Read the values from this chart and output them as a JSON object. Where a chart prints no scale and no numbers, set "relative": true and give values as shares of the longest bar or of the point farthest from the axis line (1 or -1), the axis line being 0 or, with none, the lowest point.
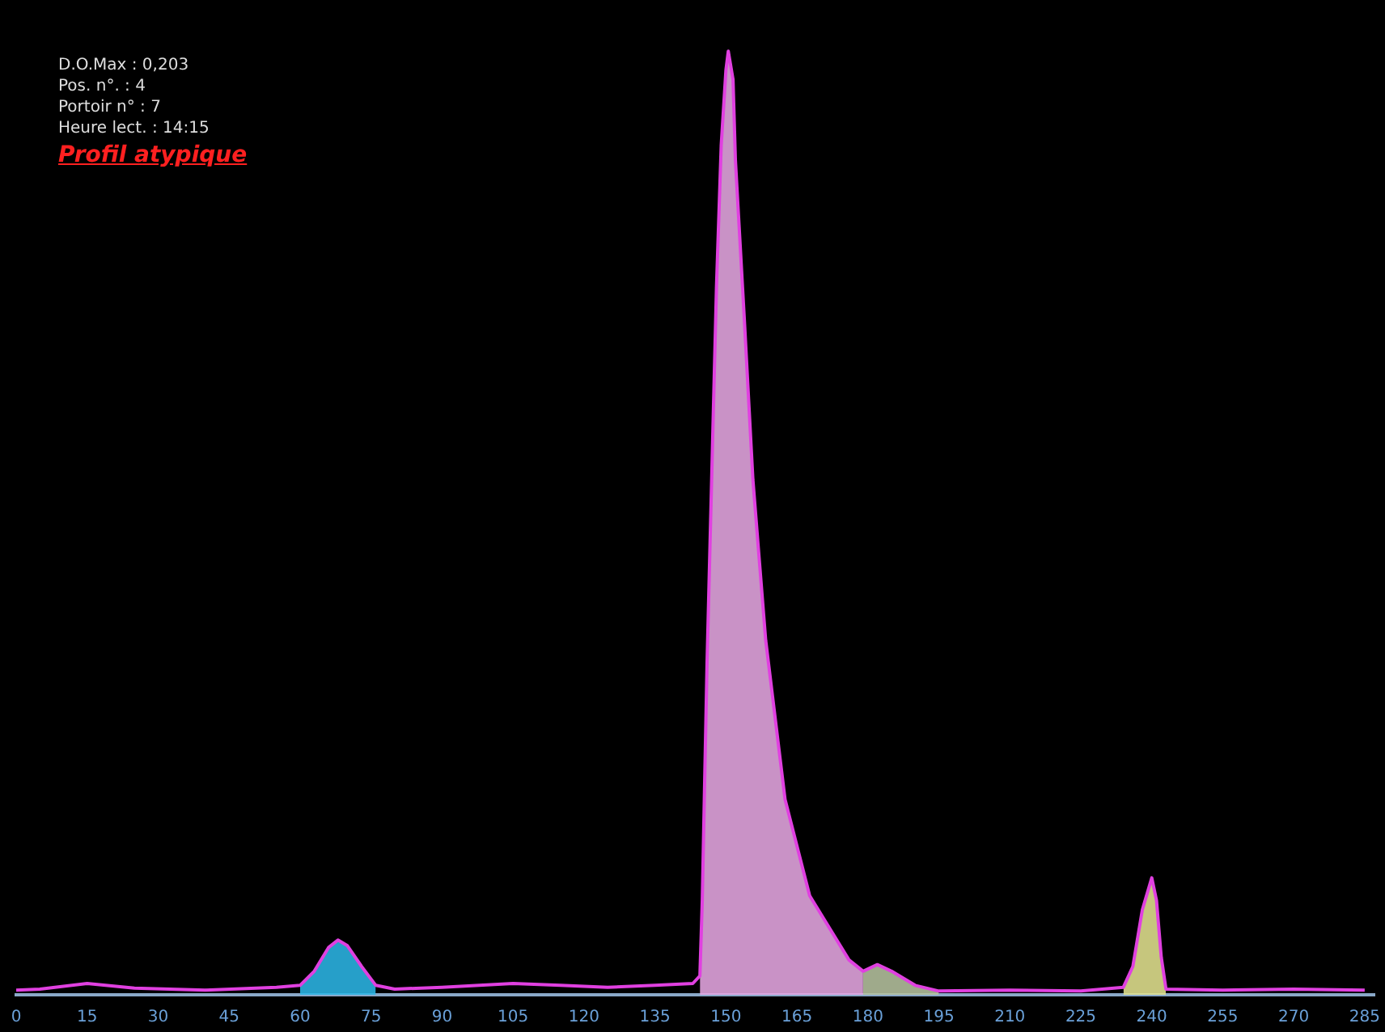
{
  "chart_data": {
    "type": "area",
    "relative": true,
    "xlim": [
      0,
      287
    ],
    "xticks": [
      0,
      15,
      30,
      45,
      60,
      75,
      90,
      105,
      120,
      135,
      150,
      165,
      180,
      195,
      210,
      225,
      240,
      255,
      270,
      285
    ],
    "grid": false,
    "legend": false,
    "annotations": [
      "D.O.Max : 0,203",
      "Pos. n°. : 4",
      "Portoir n° : 7",
      "Heure lect. : 14:15",
      "Profil atypique"
    ],
    "series": [
      {
        "type": "line",
        "color": "#e040e0",
        "x": [
          0,
          5,
          15,
          25,
          40,
          55,
          60,
          63,
          66,
          68,
          70,
          73,
          76,
          80,
          90,
          105,
          115,
          125,
          135,
          143,
          144.5,
          145,
          146,
          147,
          148,
          149,
          150,
          150.5,
          151.5,
          152,
          153.9,
          155.7,
          158.4,
          162.5,
          167.7,
          176,
          179,
          182,
          185,
          190,
          195,
          210,
          225,
          234,
          236,
          238,
          240,
          241,
          242,
          243,
          255,
          270,
          285
        ],
        "values": [
          0.005,
          0.006,
          0.012,
          0.007,
          0.005,
          0.008,
          0.01,
          0.025,
          0.05,
          0.058,
          0.052,
          0.03,
          0.01,
          0.006,
          0.008,
          0.012,
          0.01,
          0.008,
          0.01,
          0.012,
          0.02,
          0.1,
          0.35,
          0.55,
          0.75,
          0.9,
          0.98,
          1,
          0.97,
          0.885,
          0.715,
          0.546,
          0.376,
          0.207,
          0.105,
          0.037,
          0.025,
          0.032,
          0.025,
          0.01,
          0.004,
          0.005,
          0.004,
          0.008,
          0.03,
          0.09,
          0.124,
          0.1,
          0.04,
          0.006,
          0.005,
          0.006,
          0.005
        ]
      },
      {
        "color": "#2cb8e8",
        "x": [
          60,
          63,
          66,
          68,
          70,
          73,
          76
        ],
        "values": [
          0.01,
          0.025,
          0.05,
          0.058,
          0.052,
          0.03,
          0.01
        ]
      },
      {
        "color": "#e8a8e4",
        "x": [
          144.5,
          145,
          146,
          147,
          148,
          149,
          150,
          150.5,
          151.5,
          152,
          153.9,
          155.7,
          158.4,
          162.5,
          167.7,
          176,
          179
        ],
        "values": [
          0.02,
          0.1,
          0.35,
          0.55,
          0.75,
          0.9,
          0.98,
          1,
          0.97,
          0.885,
          0.715,
          0.546,
          0.376,
          0.207,
          0.105,
          0.037,
          0.025
        ]
      },
      {
        "color": "#b8c4a0",
        "x": [
          179,
          182,
          185,
          190,
          195
        ],
        "values": [
          0.025,
          0.032,
          0.025,
          0.01,
          0.004
        ]
      },
      {
        "color": "#e4e490",
        "x": [
          234,
          236,
          238,
          240,
          241,
          242,
          243
        ],
        "values": [
          0.008,
          0.03,
          0.09,
          0.124,
          0.1,
          0.04,
          0.006
        ]
      }
    ]
  }
}
